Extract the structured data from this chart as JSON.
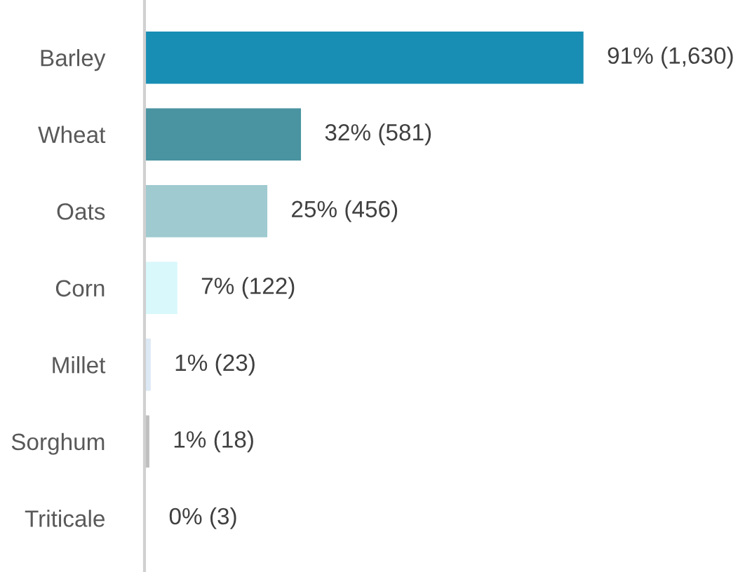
{
  "chart_data": {
    "type": "bar",
    "orientation": "horizontal",
    "categories": [
      "Barley",
      "Wheat",
      "Oats",
      "Corn",
      "Millet",
      "Sorghum",
      "Triticale"
    ],
    "values": [
      1630,
      581,
      456,
      122,
      23,
      18,
      3
    ],
    "colors": [
      "#188eb4",
      "#4a93a0",
      "#9ecad0",
      "#d8f8fb",
      "#dce9f5",
      "#bfbfbf",
      "#bfbfbf"
    ],
    "value_labels": [
      "91% (1,630)",
      "32% (581)",
      "25% (456)",
      "7% (122)",
      "1% (23)",
      "1% (18)",
      "0% (3)"
    ],
    "grid": false,
    "legend": false
  }
}
